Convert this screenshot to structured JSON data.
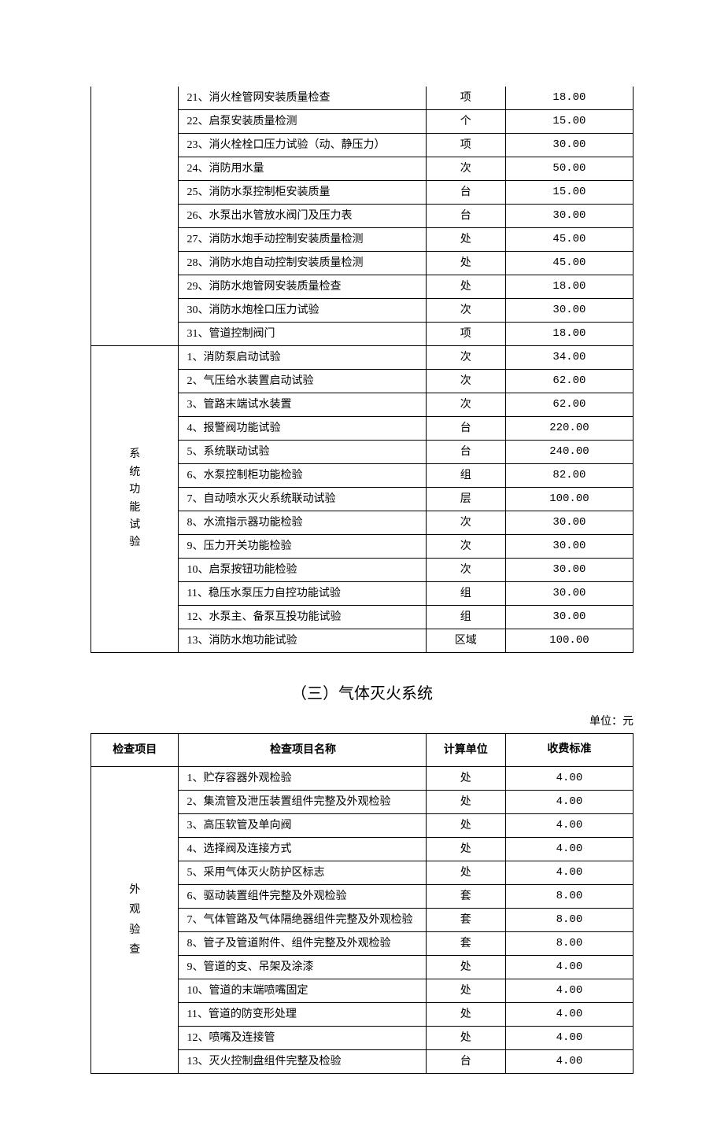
{
  "table1": {
    "section1": {
      "rows": [
        {
          "name": "21、消火栓管网安装质量检查",
          "unit": "项",
          "price": "18.00"
        },
        {
          "name": "22、启泵安装质量检测",
          "unit": "个",
          "price": "15.00"
        },
        {
          "name": "23、消火栓栓口压力试验（动、静压力）",
          "unit": "项",
          "price": "30.00"
        },
        {
          "name": "24、消防用水量",
          "unit": "次",
          "price": "50.00"
        },
        {
          "name": "25、消防水泵控制柜安装质量",
          "unit": "台",
          "price": "15.00"
        },
        {
          "name": "26、水泵出水管放水阀门及压力表",
          "unit": "台",
          "price": "30.00"
        },
        {
          "name": "27、消防水炮手动控制安装质量检测",
          "unit": "处",
          "price": "45.00"
        },
        {
          "name": "28、消防水炮自动控制安装质量检测",
          "unit": "处",
          "price": "45.00"
        },
        {
          "name": "29、消防水炮管网安装质量检查",
          "unit": "处",
          "price": "18.00"
        },
        {
          "name": "30、消防水炮栓口压力试验",
          "unit": "次",
          "price": "30.00"
        },
        {
          "name": "31、管道控制阀门",
          "unit": "项",
          "price": "18.00"
        }
      ]
    },
    "section2": {
      "category": "系统功能试验",
      "rows": [
        {
          "name": "1、消防泵启动试验",
          "unit": "次",
          "price": "34.00"
        },
        {
          "name": "2、气压给水装置启动试验",
          "unit": "次",
          "price": "62.00"
        },
        {
          "name": "3、管路末端试水装置",
          "unit": "次",
          "price": "62.00"
        },
        {
          "name": "4、报警阀功能试验",
          "unit": "台",
          "price": "220.00"
        },
        {
          "name": "5、系统联动试验",
          "unit": "台",
          "price": "240.00"
        },
        {
          "name": "6、水泵控制柜功能检验",
          "unit": "组",
          "price": "82.00"
        },
        {
          "name": "7、自动喷水灭火系统联动试验",
          "unit": "层",
          "price": "100.00"
        },
        {
          "name": "8、水流指示器功能检验",
          "unit": "次",
          "price": "30.00"
        },
        {
          "name": "9、压力开关功能检验",
          "unit": "次",
          "price": "30.00"
        },
        {
          "name": "10、启泵按钮功能检验",
          "unit": "次",
          "price": "30.00"
        },
        {
          "name": "11、稳压水泵压力自控功能试验",
          "unit": "组",
          "price": "30.00"
        },
        {
          "name": "12、水泵主、备泵互投功能试验",
          "unit": "组",
          "price": "30.00"
        },
        {
          "name": "13、消防水炮功能试验",
          "unit": "区域",
          "price": "100.00"
        }
      ]
    }
  },
  "section3_title": "（三）气体灭火系统",
  "unit_label": "单位：元",
  "table2": {
    "headers": {
      "category": "检查项目",
      "name": "检查项目名称",
      "unit": "计算单位",
      "price": "收费标准"
    },
    "section1": {
      "category": "外观验查",
      "rows": [
        {
          "name": "1、贮存容器外观检验",
          "unit": "处",
          "price": "4.00"
        },
        {
          "name": "2、集流管及泄压装置组件完整及外观检验",
          "unit": "处",
          "price": "4.00"
        },
        {
          "name": "3、高压软管及单向阀",
          "unit": "处",
          "price": "4.00"
        },
        {
          "name": "4、选择阀及连接方式",
          "unit": "处",
          "price": "4.00"
        },
        {
          "name": "5、采用气体灭火防护区标志",
          "unit": "处",
          "price": "4.00"
        },
        {
          "name": "6、驱动装置组件完整及外观检验",
          "unit": "套",
          "price": "8.00"
        },
        {
          "name": "7、气体管路及气体隔绝器组件完整及外观检验",
          "unit": "套",
          "price": "8.00"
        },
        {
          "name": "8、管子及管道附件、组件完整及外观检验",
          "unit": "套",
          "price": "8.00"
        },
        {
          "name": "9、管道的支、吊架及涂漆",
          "unit": "处",
          "price": "4.00"
        },
        {
          "name": "10、管道的末端喷嘴固定",
          "unit": "处",
          "price": "4.00"
        },
        {
          "name": "11、管道的防变形处理",
          "unit": "处",
          "price": "4.00"
        },
        {
          "name": "12、喷嘴及连接管",
          "unit": "处",
          "price": "4.00"
        },
        {
          "name": "13、灭火控制盘组件完整及检验",
          "unit": "台",
          "price": "4.00"
        }
      ]
    }
  }
}
